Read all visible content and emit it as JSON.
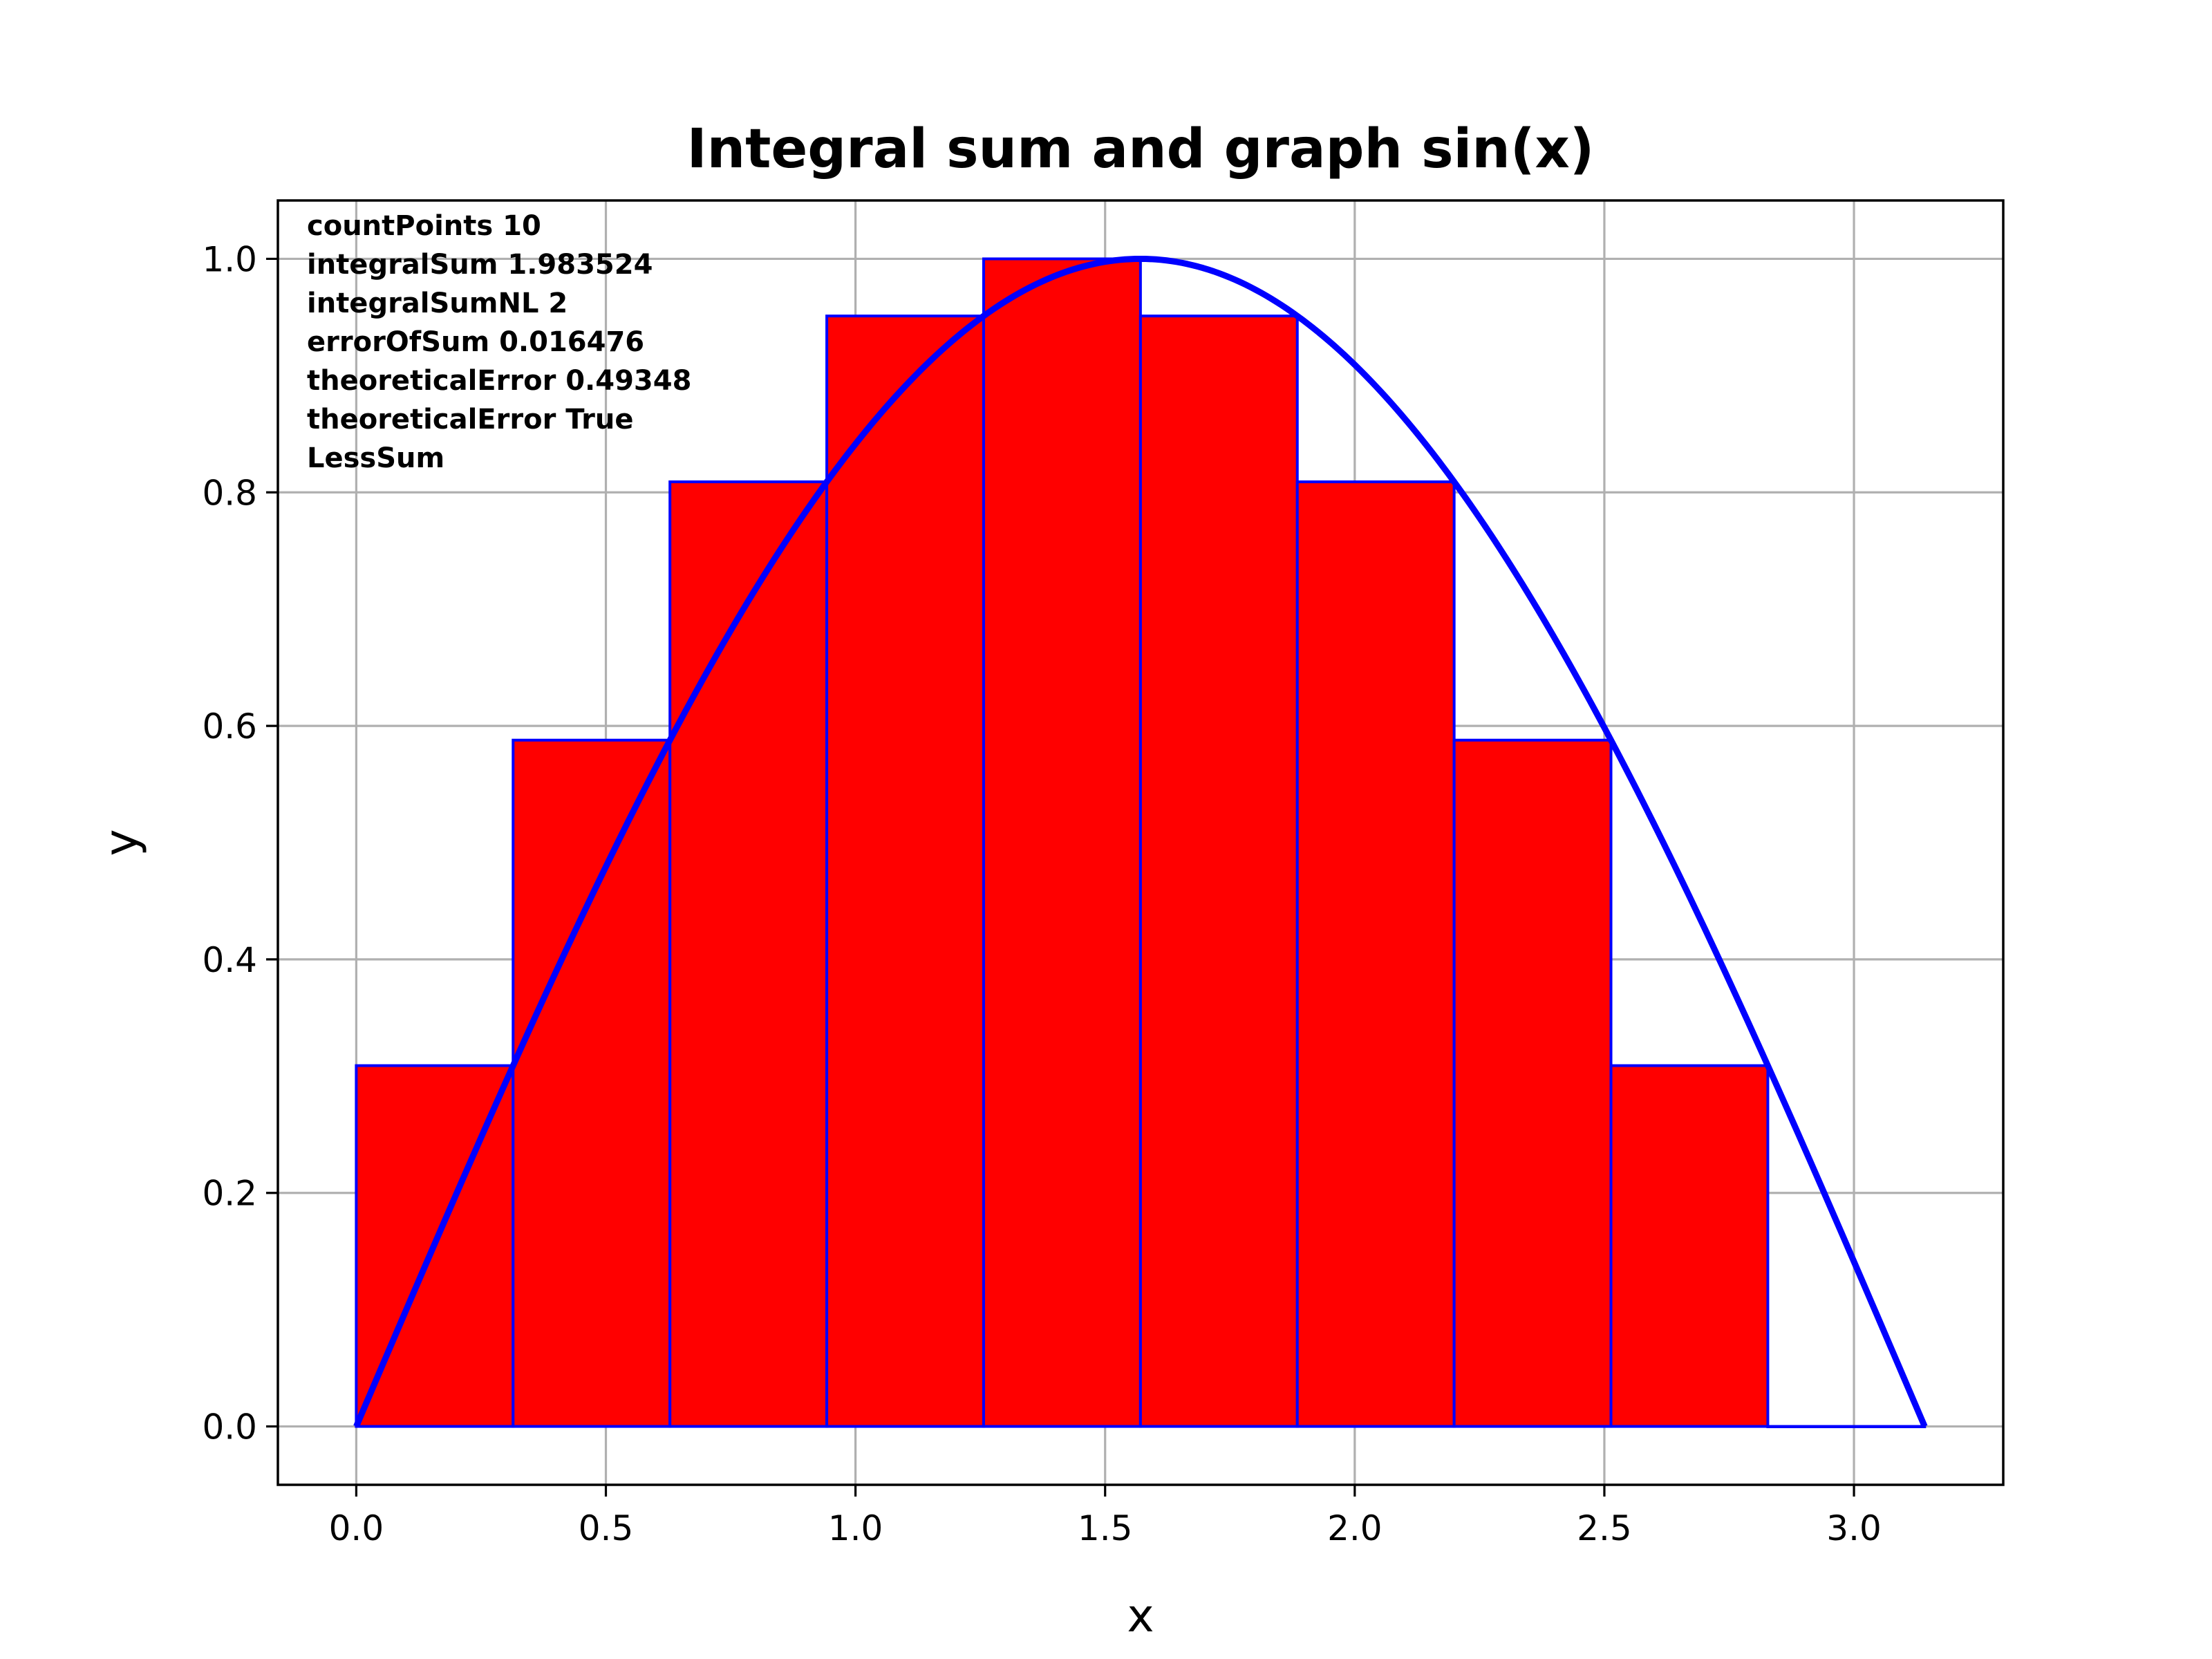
{
  "chart_data": {
    "type": "bar",
    "title": "Integral sum and graph sin(x)",
    "xlabel": "x",
    "ylabel": "y",
    "xlim": [
      -0.157,
      3.299
    ],
    "ylim": [
      -0.05,
      1.05
    ],
    "grid": true,
    "xticks": [
      0.0,
      0.5,
      1.0,
      1.5,
      2.0,
      2.5,
      3.0
    ],
    "xtick_labels": [
      "0.0",
      "0.5",
      "1.0",
      "1.5",
      "2.0",
      "2.5",
      "3.0"
    ],
    "yticks": [
      0.0,
      0.2,
      0.4,
      0.6,
      0.8,
      1.0
    ],
    "ytick_labels": [
      "0.0",
      "0.2",
      "0.4",
      "0.6",
      "0.8",
      "1.0"
    ],
    "bars": {
      "left_edges": [
        0.0,
        0.31416,
        0.62832,
        0.94248,
        1.25664,
        1.5708,
        1.88496,
        2.19911,
        2.51327,
        2.82743
      ],
      "width": 0.31416,
      "values": [
        0.309017,
        0.587785,
        0.809017,
        0.951057,
        1.0,
        0.951057,
        0.809017,
        0.587785,
        0.309017,
        0.0
      ],
      "fill_color": "#ff0000",
      "edge_color": "#0000ff"
    },
    "curve": {
      "function": "sin(x)",
      "x_range": [
        0.0,
        3.14159
      ],
      "color": "#0000ff"
    },
    "annotation_lines": [
      "countPoints 10",
      "integralSum 1.983524",
      "integralSumNL 2",
      "errorOfSum 0.016476",
      "theoreticalError 0.49348",
      "theoreticalError True",
      "LessSum"
    ]
  }
}
